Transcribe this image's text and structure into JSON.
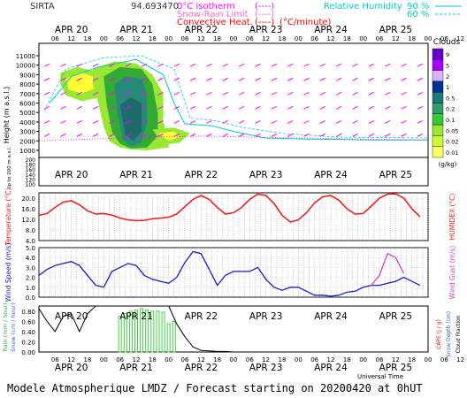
{
  "header": {
    "station": "SIRTA",
    "coords": "94.693470",
    "legend_isotherm": "0°C isotherm",
    "legend_snowrain": "Snow-Rain Limit",
    "legend_convective": "Convective Heat.",
    "legend_conv_units": "(°C/minute)",
    "legend_rh_label": "Relative Humidity",
    "legend_rh_90": "90 %",
    "legend_rh_60": "60 %",
    "brackets": "(----)",
    "colors": {
      "isotherm": "#ff00ff",
      "snowrain": "#ff66cc",
      "convective": "#ff0000",
      "rh": "#00cccc"
    }
  },
  "time_axis": {
    "days": [
      "APR 20",
      "APR 21",
      "APR 22",
      "APR 23",
      "APR 24",
      "APR 25"
    ],
    "hours": [
      "06",
      "12",
      "18",
      "00",
      "06",
      "12",
      "18",
      "00",
      "06",
      "12",
      "18",
      "00",
      "06",
      "12",
      "18",
      "00",
      "06",
      "12",
      "18",
      "00",
      "06",
      "12",
      "18",
      "00",
      "06",
      "12",
      "18"
    ],
    "xlabel": "Universal Time"
  },
  "footer": "Modele Atmospherique LMDZ / Forecast starting on 20200420 at 0hUT",
  "chart_data": [
    {
      "type": "heatmap",
      "title": "Clouds",
      "ylabel": "Height (m a.s.l.)",
      "ylabel2": "Up to 200 m a.s.l.",
      "yticks_upper": [
        "11000",
        "10000",
        "9000",
        "8000",
        "7000",
        "6000",
        "5000",
        "4000",
        "3000",
        "2000",
        "1000"
      ],
      "yticks_lower": [
        "200",
        "180",
        "160",
        "140",
        "120",
        "100"
      ],
      "colorbar_labels": [
        "9",
        "5",
        "2",
        "1",
        "0.5",
        "0.2",
        "0.1",
        "0.05",
        "0.02",
        "0.01"
      ],
      "colorbar_units": "(g/kg)",
      "colorbar_colors": [
        "#6600cc",
        "#aa00ff",
        "#d9b3ff",
        "#003399",
        "#1a7a7a",
        "#2e9e6e",
        "#33cc33",
        "#99e633",
        "#ccff33",
        "#ffff66"
      ],
      "cloud_colors": {
        "yellow": "#ffff33",
        "lightgreen": "#99e633",
        "green": "#33aa33",
        "teal": "#2a8a7a",
        "darkteal": "#1d6b6b"
      }
    },
    {
      "type": "line",
      "ylabel": "Temperature (°C)",
      "ylabel2": "HUMIDEX (°C)",
      "yticks": [
        "20.0",
        "16.0",
        "12.0",
        "8.0",
        "4.0"
      ],
      "ylim": [
        4,
        22
      ],
      "x": [
        0,
        3,
        6,
        9,
        12,
        15,
        18,
        21,
        24,
        27,
        30,
        33,
        36,
        39,
        42,
        45,
        48,
        51,
        54,
        57,
        60,
        63,
        66,
        69,
        72,
        75,
        78,
        81,
        84,
        87,
        90,
        93,
        96,
        99,
        102,
        105,
        108,
        111,
        114,
        117,
        120,
        123,
        126,
        129,
        132,
        135,
        138,
        141
      ],
      "series": [
        {
          "name": "Temperature",
          "color": "#ee2222",
          "values": [
            13.5,
            14.2,
            16.5,
            18.5,
            19.0,
            17.5,
            15.2,
            14.0,
            14.2,
            13.6,
            12.5,
            11.8,
            11.5,
            11.6,
            12.2,
            12.5,
            12.8,
            14.0,
            16.8,
            19.5,
            21.0,
            19.5,
            16.5,
            14.0,
            14.5,
            16.5,
            19.5,
            21.5,
            21.0,
            18.0,
            13.5,
            11.0,
            11.8,
            14.5,
            18.2,
            20.5,
            21.0,
            19.2,
            16.0,
            14.0,
            14.2,
            17.0,
            20.0,
            21.5,
            21.6,
            20.0,
            16.0,
            13.0
          ]
        }
      ]
    },
    {
      "type": "line",
      "ylabel": "Wind Speed (m/s)",
      "ylabel2": "Wind Gust (m/s)",
      "yticks": [
        "5.0",
        "4.0",
        "3.0",
        "2.0",
        "1.0",
        "0.0"
      ],
      "ylim": [
        0,
        5
      ],
      "x": [
        0,
        3,
        6,
        9,
        12,
        15,
        18,
        21,
        24,
        27,
        30,
        33,
        36,
        39,
        42,
        45,
        48,
        51,
        54,
        57,
        60,
        63,
        66,
        69,
        72,
        75,
        78,
        81,
        84,
        87,
        90,
        93,
        96,
        99,
        102,
        105,
        108,
        111,
        114,
        117,
        120,
        123,
        126,
        129,
        132,
        135,
        138,
        141
      ],
      "series": [
        {
          "name": "Wind Speed",
          "color": "#1a1acc",
          "values": [
            2.2,
            2.8,
            3.2,
            3.4,
            3.6,
            3.2,
            2.2,
            1.2,
            1.0,
            2.6,
            3.0,
            3.4,
            3.2,
            2.2,
            1.8,
            1.6,
            1.4,
            2.0,
            3.5,
            4.6,
            4.4,
            2.8,
            1.2,
            2.2,
            2.6,
            2.6,
            2.6,
            3.0,
            1.8,
            1.0,
            0.7,
            1.0,
            1.0,
            0.6,
            0.2,
            0.2,
            0.1,
            0.2,
            0.5,
            0.6,
            1.0,
            1.2,
            1.2,
            1.4,
            1.6,
            2.0,
            1.6,
            1.2
          ]
        },
        {
          "name": "Wind Gust",
          "color": "#cc44cc",
          "values": [
            null,
            null,
            null,
            null,
            null,
            null,
            null,
            null,
            null,
            null,
            null,
            null,
            null,
            null,
            null,
            null,
            null,
            null,
            null,
            null,
            null,
            null,
            null,
            null,
            null,
            null,
            null,
            null,
            null,
            null,
            null,
            null,
            null,
            null,
            null,
            null,
            null,
            null,
            null,
            null,
            null,
            1.2,
            2.2,
            4.4,
            4.0,
            2.4,
            null,
            null
          ]
        }
      ]
    },
    {
      "type": "bar",
      "ylabel": "Rain (mm / hour)",
      "ylabel2": "Snow (cm / hour)",
      "ylabel3": "CAPE (J / g)",
      "ylabel4": "Snow Depth (cm)",
      "ylabel5": "Cloud Fraction",
      "yticks": [
        "0.80",
        "0.60",
        "0.40",
        "0.20",
        "0.00"
      ],
      "ylim": [
        0,
        0.9
      ],
      "line_x": [
        0,
        3,
        6,
        9,
        12,
        15,
        18,
        21,
        24,
        27,
        30,
        33,
        36,
        39,
        42,
        45,
        48,
        51,
        54,
        57,
        60,
        63,
        66,
        69,
        72,
        75,
        78,
        81,
        84,
        87,
        90,
        93,
        96,
        99,
        102,
        105,
        108,
        111,
        114,
        117,
        120,
        123,
        126,
        129,
        132,
        135,
        138,
        141
      ],
      "cloud_fraction": [
        0.85,
        0.6,
        0.4,
        0.7,
        0.75,
        0.4,
        0.75,
        0.9,
        0.9,
        0.9,
        0.9,
        0.9,
        0.9,
        0.9,
        0.9,
        0.9,
        0.9,
        0.55,
        0.3,
        0.1,
        0.03,
        0.02,
        0.01,
        0.01,
        0.0,
        0.0,
        0.0,
        0.0,
        0.0,
        0.0,
        0.0,
        0.0,
        0.0,
        0.0,
        0.0,
        0.0,
        0.0,
        0.0,
        0.0,
        0.0,
        0.0,
        0.0,
        0.0,
        0.0,
        0.0,
        0.0,
        0.0,
        0.0
      ],
      "rain_x": [
        30,
        32,
        34,
        36,
        38,
        40,
        42,
        44,
        46,
        48,
        50
      ],
      "rain_values": [
        0.7,
        0.75,
        0.8,
        0.82,
        0.85,
        0.82,
        0.8,
        0.8,
        0.78,
        0.55,
        0.6
      ],
      "rain_color": "#33cc33",
      "line_color": "#000000"
    }
  ]
}
